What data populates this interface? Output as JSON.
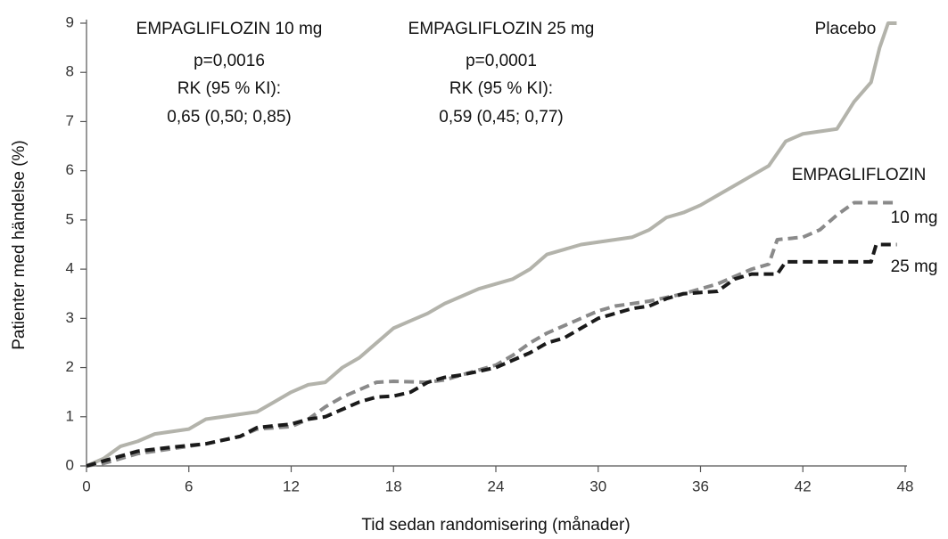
{
  "chart_data": {
    "type": "line",
    "x_label": "Tid sedan randomisering (månader)",
    "y_label": "Patienter med händelse (%)",
    "xlim": [
      0,
      48
    ],
    "xticks": [
      0,
      6,
      12,
      18,
      24,
      30,
      36,
      42,
      48
    ],
    "ylim": [
      0,
      9
    ],
    "yticks": [
      0,
      1,
      2,
      3,
      4,
      5,
      6,
      7,
      8,
      9
    ],
    "grid": false,
    "annotations": [
      "EMPAGLIFLOZIN 10 mg",
      "p=0,0016",
      "RK (95 % KI):",
      "0,65 (0,50; 0,85)",
      "EMPAGLIFLOZIN 25 mg",
      "p=0,0001",
      "RK (95 % KI):",
      "0,59 (0,45; 0,77)",
      "EMPAGLIFLOZIN"
    ],
    "series": [
      {
        "name": "Placebo",
        "color": "#b3b3ab",
        "dashed": false,
        "x": [
          0,
          1,
          2,
          3,
          4,
          6,
          7,
          9,
          10,
          11,
          12,
          13,
          14,
          15,
          16,
          17,
          18,
          19,
          20,
          21,
          22,
          23,
          24,
          25,
          26,
          27,
          28,
          29,
          30,
          31,
          32,
          33,
          34,
          35,
          36,
          37,
          38,
          39,
          40,
          41,
          42,
          43,
          44,
          45,
          46,
          46.5,
          47,
          47.5
        ],
        "values": [
          0,
          0.15,
          0.4,
          0.5,
          0.65,
          0.75,
          0.95,
          1.05,
          1.1,
          1.3,
          1.5,
          1.65,
          1.7,
          2.0,
          2.2,
          2.5,
          2.8,
          2.95,
          3.1,
          3.3,
          3.45,
          3.6,
          3.7,
          3.8,
          4.0,
          4.3,
          4.4,
          4.5,
          4.55,
          4.6,
          4.65,
          4.8,
          5.05,
          5.15,
          5.3,
          5.5,
          5.7,
          5.9,
          6.1,
          6.6,
          6.75,
          6.8,
          6.85,
          7.4,
          7.8,
          8.5,
          9.0,
          9.0
        ]
      },
      {
        "name": "10 mg",
        "color": "#8a8a8a",
        "dashed": true,
        "x": [
          0,
          1,
          2,
          3,
          5,
          7,
          9,
          10,
          12,
          13,
          14,
          15,
          16,
          17,
          18,
          20,
          21,
          22,
          24,
          25,
          26,
          27,
          28,
          29,
          30,
          31,
          33,
          35,
          37,
          38,
          39,
          40,
          40.5,
          42,
          43,
          44,
          45,
          47.5
        ],
        "values": [
          0,
          0.05,
          0.15,
          0.25,
          0.35,
          0.45,
          0.6,
          0.75,
          0.8,
          0.95,
          1.2,
          1.4,
          1.55,
          1.7,
          1.72,
          1.7,
          1.75,
          1.85,
          2.05,
          2.25,
          2.5,
          2.7,
          2.85,
          3.0,
          3.15,
          3.25,
          3.35,
          3.5,
          3.7,
          3.85,
          4.0,
          4.1,
          4.6,
          4.65,
          4.8,
          5.1,
          5.35,
          5.35
        ]
      },
      {
        "name": "25 mg",
        "color": "#1a1a1a",
        "dashed": true,
        "x": [
          0,
          1,
          2,
          3,
          5,
          7,
          9,
          10,
          12,
          13,
          14,
          15,
          16,
          17,
          18,
          19,
          20,
          21,
          22,
          24,
          25,
          26,
          27,
          28,
          29,
          30,
          31,
          32,
          33,
          34,
          35,
          37,
          38,
          39,
          40.5,
          41,
          46,
          46.3,
          47.5
        ],
        "values": [
          0,
          0.1,
          0.2,
          0.3,
          0.38,
          0.45,
          0.6,
          0.78,
          0.85,
          0.95,
          1.0,
          1.15,
          1.3,
          1.4,
          1.42,
          1.5,
          1.7,
          1.8,
          1.85,
          2.0,
          2.15,
          2.3,
          2.5,
          2.6,
          2.8,
          3.0,
          3.1,
          3.2,
          3.25,
          3.4,
          3.5,
          3.55,
          3.8,
          3.9,
          3.9,
          4.15,
          4.15,
          4.5,
          4.5
        ]
      }
    ]
  }
}
